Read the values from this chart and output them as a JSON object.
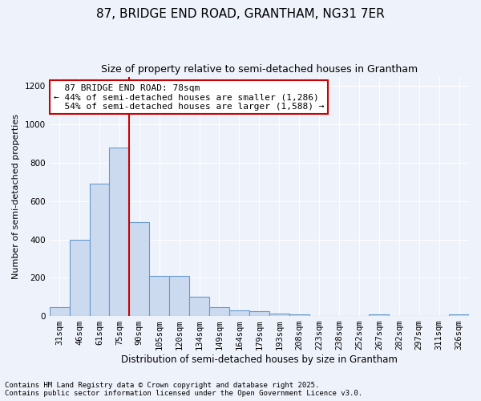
{
  "title1": "87, BRIDGE END ROAD, GRANTHAM, NG31 7ER",
  "title2": "Size of property relative to semi-detached houses in Grantham",
  "xlabel": "Distribution of semi-detached houses by size in Grantham",
  "ylabel": "Number of semi-detached properties",
  "categories": [
    "31sqm",
    "46sqm",
    "61sqm",
    "75sqm",
    "90sqm",
    "105sqm",
    "120sqm",
    "134sqm",
    "149sqm",
    "164sqm",
    "179sqm",
    "193sqm",
    "208sqm",
    "223sqm",
    "238sqm",
    "252sqm",
    "267sqm",
    "282sqm",
    "297sqm",
    "311sqm",
    "326sqm"
  ],
  "values": [
    47,
    400,
    690,
    880,
    490,
    210,
    210,
    100,
    47,
    30,
    25,
    12,
    8,
    0,
    0,
    0,
    7,
    0,
    0,
    0,
    7
  ],
  "bar_color": "#ccdaf0",
  "bar_edge_color": "#6699cc",
  "bg_color": "#eef2fa",
  "grid_color": "#ffffff",
  "red_line_index": 3,
  "red_line_label": "87 BRIDGE END ROAD: 78sqm",
  "smaller_pct": "44%",
  "smaller_n": "1,286",
  "larger_pct": "54%",
  "larger_n": "1,588",
  "annotation_box_color": "#ffffff",
  "annotation_border_color": "#cc0000",
  "footer1": "Contains HM Land Registry data © Crown copyright and database right 2025.",
  "footer2": "Contains public sector information licensed under the Open Government Licence v3.0.",
  "ylim": [
    0,
    1250
  ],
  "yticks": [
    0,
    200,
    400,
    600,
    800,
    1000,
    1200
  ],
  "title1_fontsize": 11,
  "title2_fontsize": 9,
  "xlabel_fontsize": 8.5,
  "ylabel_fontsize": 8,
  "tick_fontsize": 7.5,
  "footer_fontsize": 6.5
}
